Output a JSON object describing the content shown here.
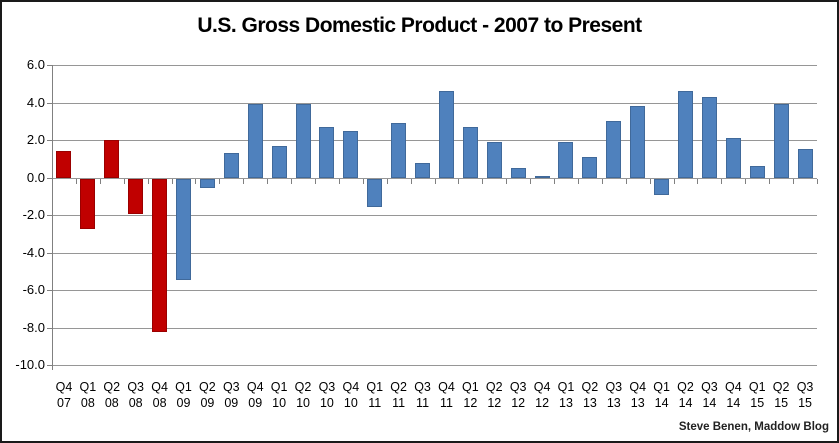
{
  "title": "U.S. Gross Domestic Product - 2007 to Present",
  "attribution": "Steve Benen, Maddow Blog",
  "chart_data": {
    "type": "bar",
    "title": "U.S. Gross Domestic Product - 2007 to Present",
    "xlabel": "",
    "ylabel": "",
    "ylim": [
      -10.0,
      6.0
    ],
    "ytick_interval": 2.0,
    "ytick_labels": [
      "6.0",
      "4.0",
      "2.0",
      "0.0",
      "-2.0",
      "-4.0",
      "-6.0",
      "-8.0",
      "-10.0"
    ],
    "grid": true,
    "legend": false,
    "categories": [
      "Q4 07",
      "Q1 08",
      "Q2 08",
      "Q3 08",
      "Q4 08",
      "Q1 09",
      "Q2 09",
      "Q3 09",
      "Q4 09",
      "Q1 10",
      "Q2 10",
      "Q3 10",
      "Q4 10",
      "Q1 11",
      "Q2 11",
      "Q3 11",
      "Q4 11",
      "Q1 12",
      "Q2 12",
      "Q3 12",
      "Q4 12",
      "Q1 13",
      "Q2 13",
      "Q3 13",
      "Q4 13",
      "Q1 14",
      "Q2 14",
      "Q3 14",
      "Q4 14",
      "Q1 15",
      "Q2 15",
      "Q3 15"
    ],
    "values": [
      1.4,
      -2.7,
      2.0,
      -1.9,
      -8.2,
      -5.4,
      -0.5,
      1.3,
      3.9,
      1.7,
      3.9,
      2.7,
      2.5,
      -1.5,
      2.9,
      0.8,
      4.6,
      2.7,
      1.9,
      0.5,
      0.1,
      1.9,
      1.1,
      3.0,
      3.8,
      -0.9,
      4.6,
      4.3,
      2.1,
      0.6,
      3.9,
      1.5
    ],
    "bar_colors": [
      "red",
      "red",
      "red",
      "red",
      "red",
      "blue",
      "blue",
      "blue",
      "blue",
      "blue",
      "blue",
      "blue",
      "blue",
      "blue",
      "blue",
      "blue",
      "blue",
      "blue",
      "blue",
      "blue",
      "blue",
      "blue",
      "blue",
      "blue",
      "blue",
      "blue",
      "blue",
      "blue",
      "blue",
      "blue",
      "blue",
      "blue"
    ],
    "series_colors": {
      "red": "#C00000",
      "blue": "#4F81BD"
    },
    "red_border": "#9A0000",
    "blue_border": "#40699A",
    "gridline_color": "#969696",
    "axis_color": "#808080"
  }
}
